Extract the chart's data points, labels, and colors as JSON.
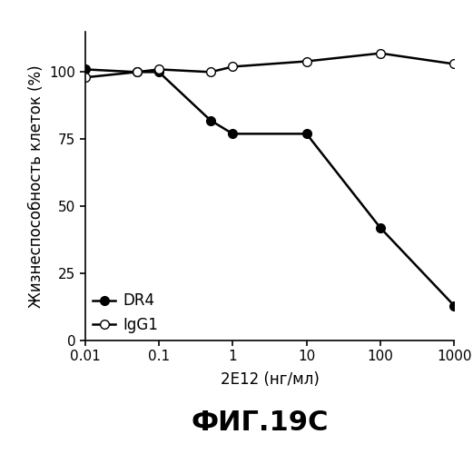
{
  "title": "ФИГ.19С",
  "xlabel": "2E12 (нг/мл)",
  "ylabel": "Жизнеспособность клеток (%)",
  "x_values": [
    0.01,
    0.05,
    0.1,
    0.5,
    1,
    10,
    100,
    1000
  ],
  "DR4_y": [
    101,
    100,
    100,
    82,
    77,
    77,
    42,
    13
  ],
  "IgG1_y": [
    98,
    100,
    101,
    100,
    102,
    104,
    107,
    103
  ],
  "ylim": [
    0,
    115
  ],
  "yticks": [
    0,
    25,
    50,
    75,
    100
  ],
  "xtick_labels": [
    "0.01",
    "0.1",
    "1",
    "10",
    "100",
    "1000"
  ],
  "xtick_vals": [
    0.01,
    0.1,
    1,
    10,
    100,
    1000
  ],
  "legend_DR4": "DR4",
  "legend_IgG1": "IgG1",
  "line_color": "#000000",
  "marker_size": 7,
  "line_width": 1.8,
  "title_fontsize": 22,
  "axis_label_fontsize": 12,
  "tick_fontsize": 11,
  "legend_fontsize": 12
}
